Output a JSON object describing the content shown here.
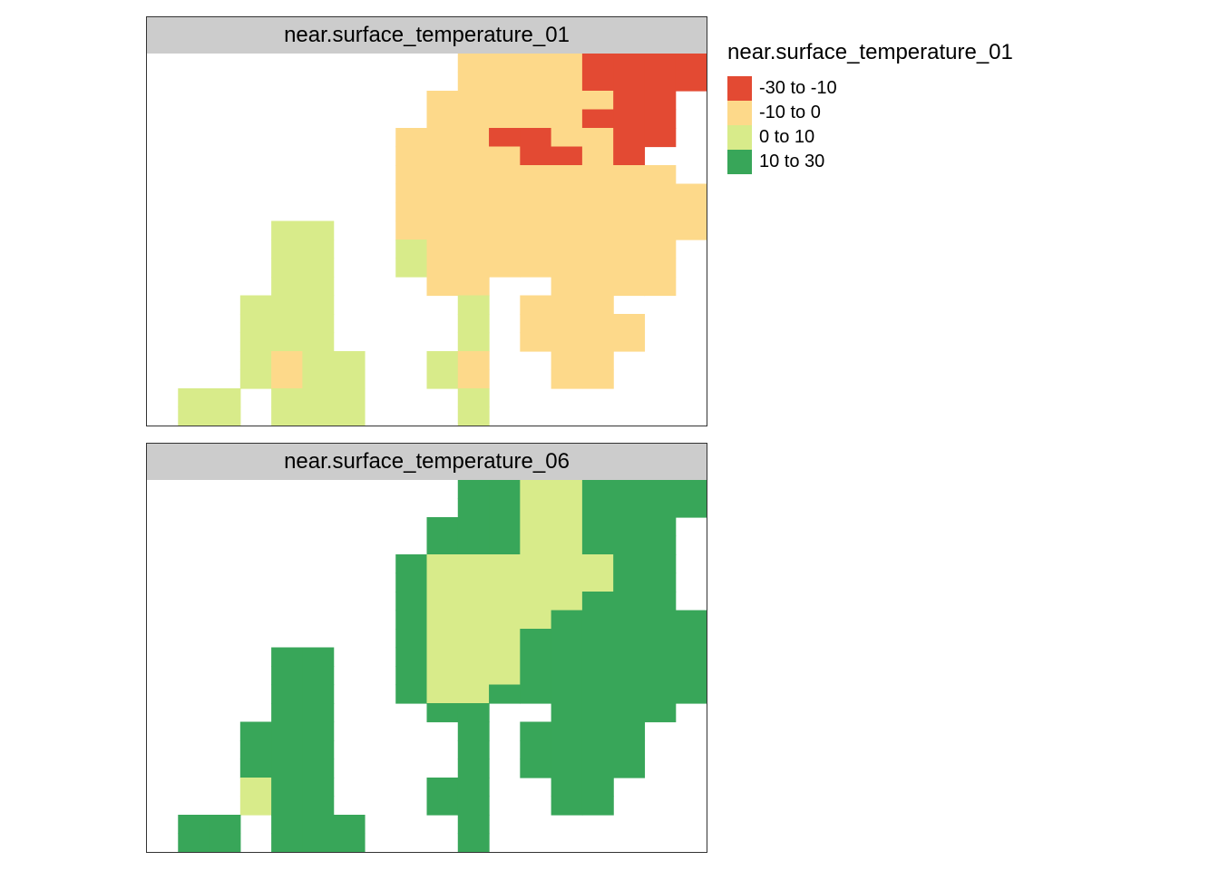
{
  "legend": {
    "title": "near.surface_temperature_01",
    "items": [
      {
        "label": "-30 to -10",
        "color": "#e34a33"
      },
      {
        "label": "-10 to 0",
        "color": "#fdd98a"
      },
      {
        "label": "0 to 10",
        "color": "#d8eb8a"
      },
      {
        "label": "10 to 30",
        "color": "#38a659"
      }
    ]
  },
  "panels": [
    {
      "title": "near.surface_temperature_01",
      "grid": [
        "..........ccccrrrr",
        "..........ccccrrrr",
        ".........ccccccrr.",
        ".........cccccrrr.",
        "........cccrrccrr.",
        "........ccccrrcr..",
        "........ccccccccc.",
        "........cccccccccc",
        "........cccccccccc",
        "....aa..cccccccccc",
        "....aa..gcccccccc.",
        "....aa..gcccccccc.",
        "....aa...cc..cccc.",
        "...aaa....a.ccc...",
        "...aaa....a.cccc..",
        "...aaa....a.cccc..",
        "...acaa..ac..cc...",
        "...acaa..ac..cc...",
        ".aa.aaa...g.......",
        ".aa.aaa...g......."
      ]
    },
    {
      "title": "near.surface_temperature_06",
      "grid": [
        "..........ddppdddd",
        "..........ddppdddd",
        ".........dddppddd.",
        ".........dddppddd.",
        "........dppppppdd.",
        "........dppppppdd.",
        "........dpppppddd.",
        "........dppppddddd",
        "........dpppdddddd",
        "....dd..dpppdddddd",
        "....dd..dpppdddddd",
        "....dd..dppddddddd",
        "....dd...dd..dddd.",
        "...ddd....d.dddd..",
        "...ddd....d.dddd..",
        "...ddd....d.dddd..",
        "...pdd...dd..dd...",
        "...pdd...dd..dd...",
        ".dd.ddd...d.......",
        ".dd.ddd...d......."
      ]
    }
  ]
}
